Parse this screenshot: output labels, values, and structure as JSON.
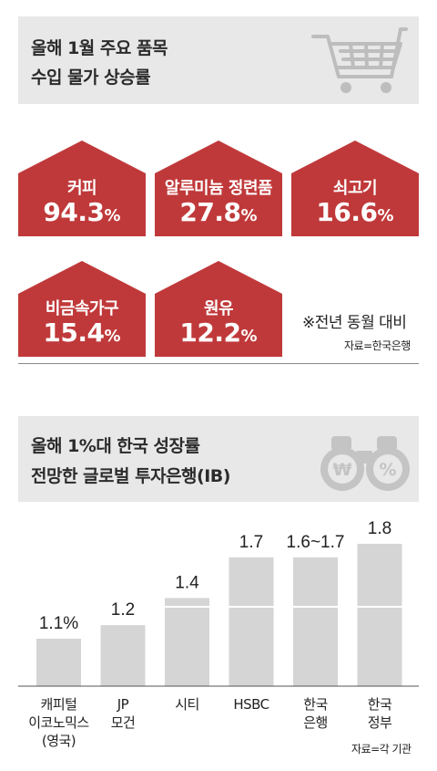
{
  "panel1": {
    "title_line1": "올해 1월 주요 품목",
    "title_line2": "수입 물가 상승률",
    "icon": "shopping-cart-icon",
    "items": [
      {
        "label": "커피",
        "value": "94.3",
        "unit": "%"
      },
      {
        "label": "알루미늄 정련품",
        "value": "27.8",
        "unit": "%"
      },
      {
        "label": "쇠고기",
        "value": "16.6",
        "unit": "%"
      },
      {
        "label": "비금속가구",
        "value": "15.4",
        "unit": "%"
      },
      {
        "label": "원유",
        "value": "12.2",
        "unit": "%"
      }
    ],
    "note": "※전년 동월 대비",
    "source": "자료=한국은행",
    "house_color": "#c0393a"
  },
  "panel2": {
    "title_line1": "올해 1%대 한국 성장률",
    "title_line2": "전망한 글로벌 투자은행(IB)",
    "icon": "binoculars-currency-icon",
    "source": "자료=각 기관"
  },
  "chart_data": {
    "type": "bar",
    "title": "올해 1%대 한국 성장률 전망한 글로벌 투자은행(IB)",
    "categories": [
      "캐피털 이코노믹스 (영국)",
      "JP 모건",
      "시티",
      "HSBC",
      "한국 은행",
      "한국 정부"
    ],
    "category_lines": [
      [
        "캐피털",
        "이코노믹스",
        "(영국)"
      ],
      [
        "JP",
        "모건"
      ],
      [
        "시티"
      ],
      [
        "HSBC"
      ],
      [
        "한국",
        "은행"
      ],
      [
        "한국",
        "정부"
      ]
    ],
    "values": [
      1.1,
      1.2,
      1.4,
      1.7,
      1.7,
      1.8
    ],
    "value_labels": [
      "1.1%",
      "1.2",
      "1.4",
      "1.7",
      "1.6~1.7",
      "1.8"
    ],
    "ylim": [
      0,
      1.8
    ],
    "grid": false,
    "bar_color": "#d5d5d5",
    "divider_color": "#ffffff"
  }
}
